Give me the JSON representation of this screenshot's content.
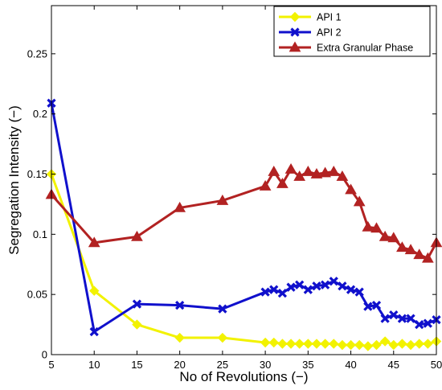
{
  "chart_data": {
    "type": "line",
    "xlabel": "No of Revolutions (−)",
    "ylabel": "Segregation Intensity (−)",
    "xlim": [
      5,
      50
    ],
    "ylim": [
      0,
      0.29
    ],
    "xticks": [
      5,
      10,
      15,
      20,
      25,
      30,
      35,
      40,
      45,
      50
    ],
    "yticks": [
      0,
      0.05,
      0.1,
      0.15,
      0.2,
      0.25
    ],
    "ytick_labels": [
      "0",
      "0.05",
      "0.1",
      "0.15",
      "0.2",
      "0.25"
    ],
    "grid": false,
    "legend_position": "top-right",
    "series": [
      {
        "name": "API 1",
        "color": "#f2f200",
        "marker": "diamond",
        "x": [
          5,
          10,
          15,
          20,
          25,
          30,
          31,
          32,
          33,
          34,
          35,
          36,
          37,
          38,
          39,
          40,
          41,
          42,
          43,
          44,
          45,
          46,
          47,
          48,
          49,
          50
        ],
        "y": [
          0.15,
          0.053,
          0.025,
          0.014,
          0.014,
          0.01,
          0.01,
          0.009,
          0.009,
          0.009,
          0.009,
          0.009,
          0.009,
          0.009,
          0.008,
          0.008,
          0.008,
          0.007,
          0.008,
          0.011,
          0.008,
          0.009,
          0.008,
          0.009,
          0.009,
          0.011
        ]
      },
      {
        "name": "API 2",
        "color": "#1010cc",
        "marker": "x",
        "x": [
          5,
          10,
          15,
          20,
          25,
          30,
          31,
          32,
          33,
          34,
          35,
          36,
          37,
          38,
          39,
          40,
          41,
          42,
          43,
          44,
          45,
          46,
          47,
          48,
          49,
          50
        ],
        "y": [
          0.209,
          0.019,
          0.042,
          0.041,
          0.038,
          0.052,
          0.054,
          0.051,
          0.056,
          0.058,
          0.054,
          0.057,
          0.058,
          0.061,
          0.057,
          0.054,
          0.052,
          0.04,
          0.041,
          0.03,
          0.033,
          0.03,
          0.03,
          0.025,
          0.026,
          0.029
        ]
      },
      {
        "name": "Extra Granular Phase",
        "color": "#b22222",
        "marker": "triangle",
        "x": [
          5,
          10,
          15,
          20,
          25,
          30,
          31,
          32,
          33,
          34,
          35,
          36,
          37,
          38,
          39,
          40,
          41,
          42,
          43,
          44,
          45,
          46,
          47,
          48,
          49,
          50
        ],
        "y": [
          0.133,
          0.093,
          0.098,
          0.122,
          0.128,
          0.14,
          0.152,
          0.142,
          0.154,
          0.148,
          0.152,
          0.15,
          0.151,
          0.152,
          0.148,
          0.137,
          0.127,
          0.106,
          0.105,
          0.098,
          0.097,
          0.089,
          0.087,
          0.083,
          0.08,
          0.093
        ]
      }
    ]
  }
}
